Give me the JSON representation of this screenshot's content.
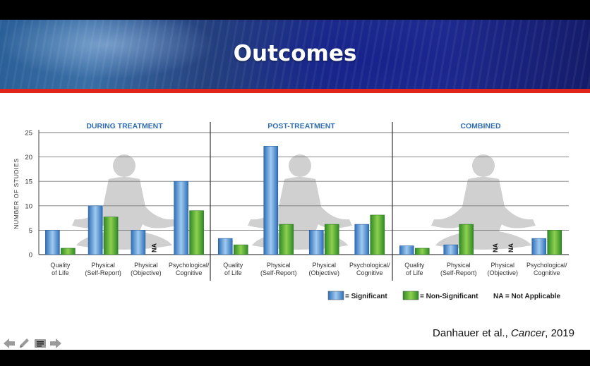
{
  "slide": {
    "title": "Outcomes",
    "citation": {
      "authors": "Danhauer et al., ",
      "journal": "Cancer",
      "year": ", 2019"
    }
  },
  "colors": {
    "significant": "#4d8fd1",
    "non_significant": "#4aa83c",
    "banner_red": "#e1251b",
    "header_text": "#2f6db3"
  },
  "nav_icons": [
    "arrow-left-icon",
    "pencil-icon",
    "menu-icon",
    "arrow-right-icon"
  ],
  "chart_data": {
    "type": "bar",
    "ylabel": "NUMBER OF STUDIES",
    "ylim": [
      0,
      25
    ],
    "yticks": [
      0,
      5,
      10,
      15,
      20,
      25
    ],
    "grid": true,
    "panels": [
      {
        "title": "DURING TREATMENT",
        "categories": [
          "Quality\nof Life",
          "Physical\n(Self-Report)",
          "Physical\n(Objective)",
          "Psychological/\nCognitive"
        ],
        "significant": [
          5,
          10,
          5,
          15
        ],
        "non_significant": [
          1.3,
          7.7,
          null,
          9
        ],
        "na": [
          null,
          null,
          "non_significant",
          null
        ]
      },
      {
        "title": "POST-TREATMENT",
        "categories": [
          "Quality\nof Life",
          "Physical\n(Self-Report)",
          "Physical\n(Objective)",
          "Psychological/\nCognitive"
        ],
        "significant": [
          3.3,
          22.2,
          5,
          6.2
        ],
        "non_significant": [
          2,
          6.2,
          6.2,
          8.1
        ],
        "na": [
          null,
          null,
          null,
          null
        ]
      },
      {
        "title": "COMBINED",
        "categories": [
          "Quality\nof Life",
          "Physical\n(Self-Report)",
          "Physical\n(Objective)",
          "Psychological/\nCognitive"
        ],
        "significant": [
          1.8,
          2,
          null,
          3.3
        ],
        "non_significant": [
          1.3,
          6.2,
          null,
          5
        ],
        "na": [
          null,
          null,
          "both",
          null
        ]
      }
    ],
    "na_label": "NA",
    "legend": {
      "placement": "bottom-right",
      "items": [
        {
          "key": "significant",
          "label": "= Significant"
        },
        {
          "key": "non_significant",
          "label": "= Non-Significant"
        },
        {
          "key": "na",
          "prefix": "NA",
          "label": " = Not Applicable"
        }
      ]
    }
  }
}
